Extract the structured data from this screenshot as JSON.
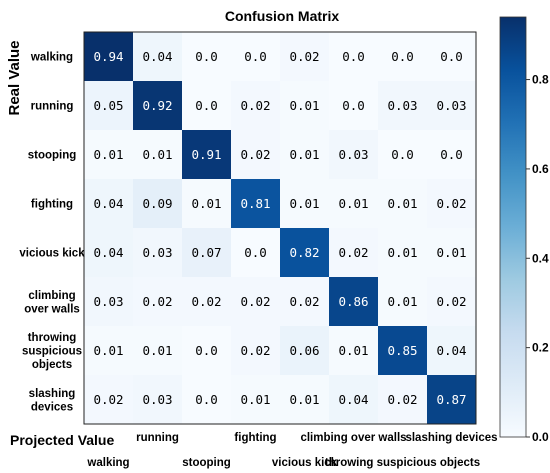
{
  "chart_data": {
    "type": "heatmap",
    "title": "Confusion Matrix",
    "ylabel": "Real Value",
    "xlabel": "Projected Value",
    "row_labels": [
      [
        "walking"
      ],
      [
        "running"
      ],
      [
        "stooping"
      ],
      [
        "fighting"
      ],
      [
        "vicious kick"
      ],
      [
        "climbing",
        "over walls"
      ],
      [
        "throwing",
        "suspicious",
        "objects"
      ],
      [
        "slashing",
        "devices"
      ]
    ],
    "column_labels": [
      "walking",
      "running",
      "stooping",
      "fighting",
      "vicious kick",
      "climbing over walls",
      "throwing suspicious objects",
      "slashing devices"
    ],
    "values": [
      [
        0.94,
        0.04,
        0.0,
        0.0,
        0.02,
        0.0,
        0.0,
        0.0
      ],
      [
        0.05,
        0.92,
        0.0,
        0.02,
        0.01,
        0.0,
        0.03,
        0.03
      ],
      [
        0.01,
        0.01,
        0.91,
        0.02,
        0.01,
        0.03,
        0.0,
        0.0
      ],
      [
        0.04,
        0.09,
        0.01,
        0.81,
        0.01,
        0.01,
        0.01,
        0.02
      ],
      [
        0.04,
        0.03,
        0.07,
        0.0,
        0.82,
        0.02,
        0.01,
        0.01
      ],
      [
        0.03,
        0.02,
        0.02,
        0.02,
        0.02,
        0.86,
        0.01,
        0.02
      ],
      [
        0.01,
        0.01,
        0.0,
        0.02,
        0.06,
        0.01,
        0.85,
        0.04
      ],
      [
        0.02,
        0.03,
        0.0,
        0.01,
        0.01,
        0.04,
        0.02,
        0.87
      ]
    ],
    "colorbar": {
      "range": [
        0.0,
        0.94
      ],
      "ticks": [
        0.0,
        0.2,
        0.4,
        0.6,
        0.8
      ],
      "colormap": "Blues",
      "low_color": "#f7fbff",
      "high_color": "#08306b"
    }
  }
}
